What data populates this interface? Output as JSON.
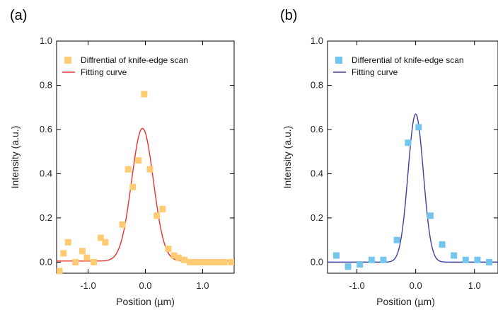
{
  "chart_data": [
    {
      "panel_label": "(a)",
      "type": "scatter",
      "xlabel": "Position (µm)",
      "ylabel": "Intensity (a.u.)",
      "xlim": [
        -1.55,
        1.55
      ],
      "ylim": [
        -0.05,
        1.0
      ],
      "x_ticks": [
        -1.0,
        0.0,
        1.0
      ],
      "x_tick_labels": [
        "-1.0",
        "0.0",
        "1.0"
      ],
      "y_ticks": [
        0.0,
        0.2,
        0.4,
        0.6,
        0.8,
        1.0
      ],
      "y_tick_labels": [
        "0.0",
        "0.2",
        "0.4",
        "0.6",
        "0.8",
        "1.0"
      ],
      "legend_position": "top-left",
      "marker_color": "#FFCC73",
      "curve_color": "#E8302D",
      "series": [
        {
          "name": "Diffrential of knife-edge scan",
          "kind": "points",
          "x": [
            -1.5,
            -1.43,
            -1.35,
            -1.22,
            -1.1,
            -1.02,
            -0.9,
            -0.78,
            -0.7,
            -0.4,
            -0.3,
            -0.22,
            -0.12,
            -0.02,
            0.08,
            0.2,
            0.3,
            0.4,
            0.5,
            0.58,
            0.68,
            0.78,
            0.88,
            0.98,
            1.08,
            1.18,
            1.28,
            1.38,
            1.5
          ],
          "y": [
            -0.04,
            0.04,
            0.09,
            0.0,
            0.05,
            0.02,
            0.0,
            0.11,
            0.09,
            0.17,
            0.42,
            0.34,
            0.46,
            0.76,
            0.42,
            0.21,
            0.24,
            0.06,
            0.03,
            0.02,
            0.01,
            0.0,
            0.0,
            0.0,
            0.0,
            0.0,
            0.0,
            0.0,
            0.0
          ]
        },
        {
          "name": "Fitting curve",
          "kind": "gaussian",
          "amplitude": 0.6,
          "center": -0.05,
          "sigma": 0.19,
          "offset": 0.005
        }
      ]
    },
    {
      "panel_label": "(b)",
      "type": "scatter",
      "xlabel": "Position (µm)",
      "ylabel": "Intensity (a.u.)",
      "xlim": [
        -1.5,
        1.4
      ],
      "ylim": [
        -0.05,
        1.0
      ],
      "x_ticks": [
        -1.0,
        0.0,
        1.0
      ],
      "x_tick_labels": [
        "-1.0",
        "0.0",
        "1.0"
      ],
      "y_ticks": [
        0.0,
        0.2,
        0.4,
        0.6,
        0.8,
        1.0
      ],
      "y_tick_labels": [
        "0.0",
        "0.2",
        "0.4",
        "0.6",
        "0.8",
        "1.0"
      ],
      "legend_position": "top-left",
      "marker_color": "#72C6EE",
      "curve_color": "#3F3F9C",
      "series": [
        {
          "name": "Differential of knife-edge scan",
          "kind": "points",
          "x": [
            -1.35,
            -1.15,
            -0.95,
            -0.75,
            -0.55,
            -0.32,
            -0.13,
            0.05,
            0.25,
            0.45,
            0.65,
            0.85,
            1.05,
            1.25
          ],
          "y": [
            0.03,
            -0.02,
            -0.01,
            0.01,
            0.01,
            0.1,
            0.54,
            0.61,
            0.21,
            0.08,
            0.03,
            0.01,
            0.01,
            0.0
          ]
        },
        {
          "name": "Fitting curve",
          "kind": "gaussian",
          "amplitude": 0.67,
          "center": 0.0,
          "sigma": 0.13,
          "offset": 0.0
        }
      ]
    }
  ]
}
